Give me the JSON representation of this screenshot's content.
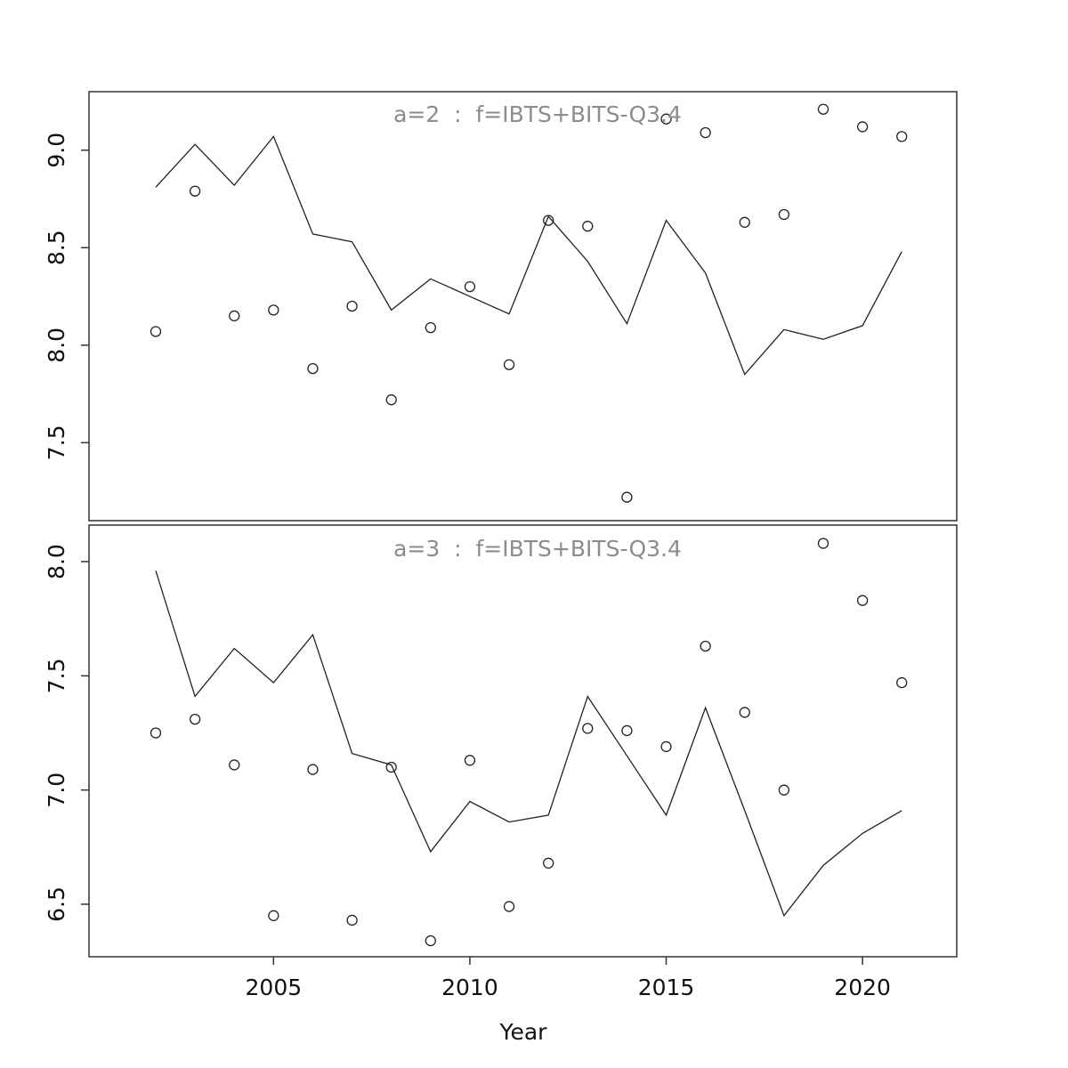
{
  "figure": {
    "xlabel": "Year",
    "background": "#ffffff",
    "title_color": "#8c8c8c",
    "line_color": "#222222",
    "point_color": "#222222"
  },
  "chart_data": [
    {
      "type": "line",
      "title": "a=2  :  f=IBTS+BITS-Q3.4",
      "xlabel": "Year",
      "ylabel": "",
      "grid": false,
      "legend": "none",
      "x": [
        2002,
        2003,
        2004,
        2005,
        2006,
        2007,
        2008,
        2009,
        2010,
        2011,
        2012,
        2013,
        2014,
        2015,
        2016,
        2017,
        2018,
        2019,
        2020,
        2021
      ],
      "xlim": [
        2000.3,
        2022.4
      ],
      "ylim": [
        7.1,
        9.3
      ],
      "xticks": [
        2005,
        2010,
        2015,
        2020
      ],
      "yticks": [
        7.5,
        8.0,
        8.5,
        9.0
      ],
      "series": [
        {
          "name": "fitted-line",
          "style": "solid-line",
          "values": [
            8.81,
            9.03,
            8.82,
            9.07,
            8.57,
            8.53,
            8.18,
            8.34,
            8.25,
            8.16,
            8.66,
            8.43,
            8.11,
            8.64,
            8.37,
            7.85,
            8.08,
            8.03,
            8.1,
            8.48
          ]
        },
        {
          "name": "observed-points",
          "style": "open-circles",
          "values": [
            8.07,
            8.79,
            8.15,
            8.18,
            7.88,
            8.2,
            7.72,
            8.09,
            8.3,
            7.9,
            8.64,
            8.61,
            7.22,
            9.16,
            9.09,
            8.63,
            8.67,
            9.21,
            9.12,
            9.07
          ]
        }
      ]
    },
    {
      "type": "line",
      "title": "a=3  :  f=IBTS+BITS-Q3.4",
      "xlabel": "Year",
      "ylabel": "",
      "grid": false,
      "legend": "none",
      "x": [
        2002,
        2003,
        2004,
        2005,
        2006,
        2007,
        2008,
        2009,
        2010,
        2011,
        2012,
        2013,
        2014,
        2015,
        2016,
        2017,
        2018,
        2019,
        2020,
        2021
      ],
      "xlim": [
        2000.3,
        2022.4
      ],
      "ylim": [
        6.27,
        8.16
      ],
      "xticks": [
        2005,
        2010,
        2015,
        2020
      ],
      "yticks": [
        6.5,
        7.0,
        7.5,
        8.0
      ],
      "series": [
        {
          "name": "fitted-line",
          "style": "solid-line",
          "values": [
            7.96,
            7.41,
            7.62,
            7.47,
            7.68,
            7.16,
            7.11,
            6.73,
            6.95,
            6.86,
            6.89,
            7.41,
            7.15,
            6.89,
            7.36,
            6.91,
            6.45,
            6.67,
            6.81,
            6.91
          ]
        },
        {
          "name": "observed-points",
          "style": "open-circles",
          "values": [
            7.25,
            7.31,
            7.11,
            6.45,
            7.09,
            6.43,
            7.1,
            6.34,
            7.13,
            6.49,
            6.68,
            7.27,
            7.26,
            7.19,
            7.63,
            7.34,
            7.0,
            8.08,
            7.83,
            7.47
          ]
        }
      ]
    }
  ]
}
